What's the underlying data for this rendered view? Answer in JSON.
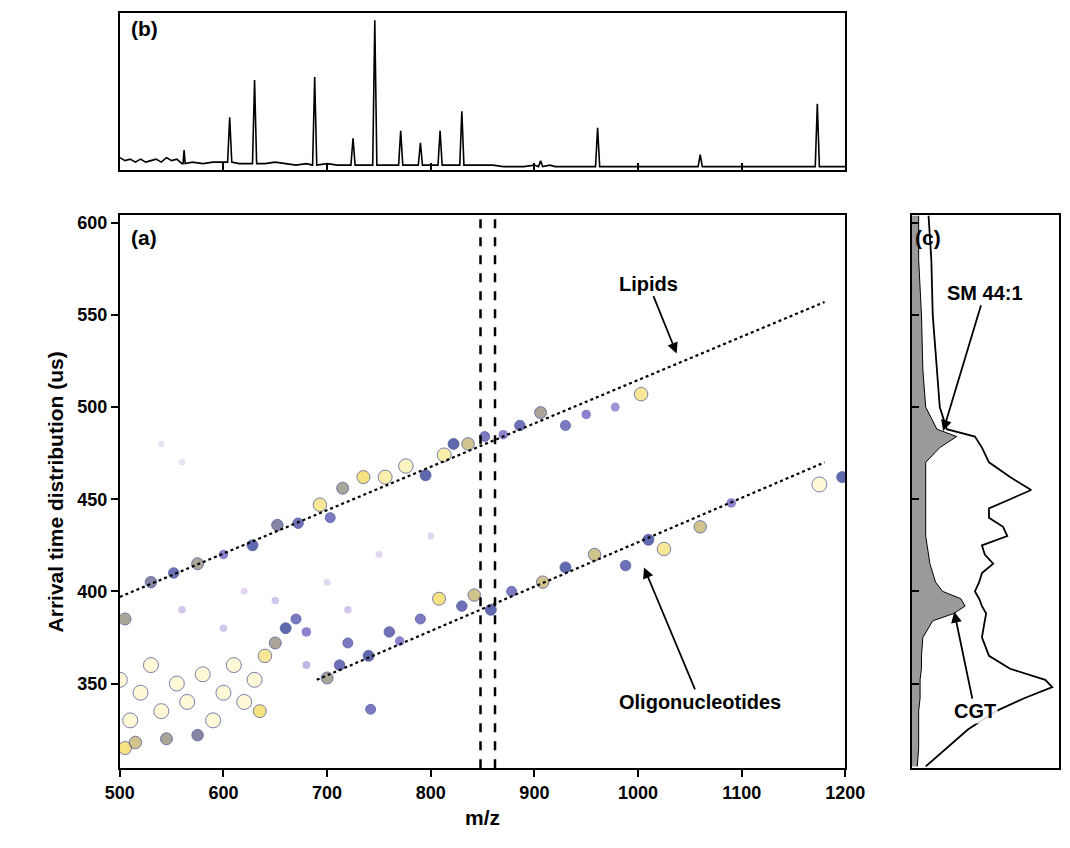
{
  "chart_data": [
    {
      "type": "line",
      "label": "(b)",
      "color": "#000000",
      "tick_labels": false,
      "xlim": [
        500,
        1200
      ],
      "ylim": [
        0,
        105
      ],
      "xticks": [
        500,
        600,
        700,
        800,
        900,
        1000,
        1100,
        1200
      ],
      "yticks": [],
      "x": [
        500,
        505,
        510,
        515,
        520,
        525,
        530,
        535,
        540,
        545,
        550,
        555,
        560,
        561,
        562,
        563,
        570,
        580,
        590,
        600,
        604,
        606,
        608,
        615,
        628,
        630,
        632,
        640,
        650,
        660,
        670,
        680,
        686,
        688,
        690,
        700,
        710,
        723,
        725,
        727,
        735,
        744,
        746,
        748,
        755,
        769,
        771,
        773,
        780,
        788,
        790,
        792,
        800,
        807,
        809,
        811,
        820,
        828,
        830,
        832,
        840,
        850,
        860,
        870,
        880,
        890,
        900,
        904,
        906,
        908,
        915,
        920,
        930,
        940,
        950,
        959,
        961,
        963,
        970,
        980,
        990,
        1000,
        1010,
        1020,
        1030,
        1040,
        1050,
        1058,
        1060,
        1062,
        1070,
        1080,
        1090,
        1100,
        1110,
        1120,
        1130,
        1140,
        1150,
        1160,
        1171,
        1173,
        1175,
        1180,
        1190,
        1200
      ],
      "values": [
        8,
        6,
        7,
        5,
        7,
        5,
        6,
        7,
        5,
        8,
        6,
        7,
        4,
        4,
        13,
        4,
        5,
        4,
        5,
        5,
        5,
        35,
        5,
        4,
        4,
        60,
        4,
        4,
        5,
        4,
        3,
        4,
        3,
        62,
        3,
        4,
        3,
        3,
        21,
        3,
        3,
        3,
        100,
        3,
        3,
        3,
        26,
        3,
        3,
        3,
        18,
        3,
        3,
        3,
        26,
        3,
        3,
        3,
        39,
        3,
        3,
        3,
        3,
        2,
        2,
        2,
        3,
        2,
        6,
        2,
        3,
        2,
        2,
        2,
        2,
        2,
        28,
        2,
        2,
        2,
        2,
        2,
        2,
        2,
        2,
        2,
        2,
        2,
        10,
        2,
        2,
        2,
        2,
        2,
        2,
        2,
        2,
        2,
        2,
        2,
        2,
        44,
        2,
        2,
        2,
        2
      ]
    },
    {
      "type": "scatter",
      "label": "(a)",
      "x_label": "m/z",
      "y_label": "Arrival time distribution (us)",
      "xlim": [
        500,
        1200
      ],
      "ylim": [
        304,
        604
      ],
      "xticks": [
        500,
        600,
        700,
        800,
        900,
        1000,
        1100,
        1200
      ],
      "yticks": [
        350,
        400,
        450,
        500,
        550,
        600
      ],
      "intensity_range": [
        0,
        100
      ],
      "x": [
        540,
        560,
        600,
        650,
        700,
        750,
        800,
        680,
        720,
        560,
        620,
        505,
        530,
        552,
        575,
        600,
        628,
        652,
        672,
        693,
        703,
        715,
        735,
        756,
        776,
        795,
        813,
        822,
        836,
        852,
        870,
        886,
        906,
        930,
        950,
        978,
        1003,
        700,
        712,
        720,
        740,
        760,
        770,
        790,
        808,
        830,
        842,
        858,
        878,
        908,
        930,
        958,
        988,
        1010,
        1025,
        1060,
        1090,
        1175,
        1197,
        742,
        505,
        515,
        545,
        575,
        640,
        650,
        660,
        670,
        680,
        635,
        510,
        520,
        530,
        540,
        555,
        565,
        580,
        590,
        600,
        610,
        620,
        630,
        500
      ],
      "y": [
        480,
        470,
        380,
        395,
        405,
        420,
        430,
        360,
        390,
        390,
        400,
        385,
        405,
        410,
        415,
        420,
        425,
        436,
        437,
        447,
        440,
        456,
        462,
        462,
        468,
        463,
        474,
        480,
        480,
        484,
        485,
        490,
        497,
        490,
        496,
        500,
        507,
        353,
        360,
        372,
        365,
        378,
        373,
        385,
        396,
        392,
        398,
        390,
        400,
        405,
        413,
        420,
        414,
        428,
        423,
        435,
        448,
        458,
        462,
        336,
        315,
        318,
        320,
        322,
        365,
        372,
        380,
        385,
        378,
        335,
        330,
        345,
        360,
        335,
        350,
        340,
        355,
        330,
        345,
        360,
        340,
        352,
        352
      ],
      "intensity": [
        15,
        15,
        25,
        25,
        20,
        20,
        20,
        30,
        25,
        25,
        20,
        70,
        65,
        55,
        70,
        45,
        60,
        65,
        55,
        85,
        50,
        70,
        80,
        90,
        95,
        60,
        90,
        60,
        75,
        50,
        45,
        55,
        70,
        50,
        45,
        40,
        85,
        70,
        55,
        50,
        60,
        55,
        45,
        50,
        80,
        55,
        75,
        60,
        50,
        75,
        60,
        75,
        55,
        60,
        85,
        75,
        45,
        100,
        60,
        50,
        80,
        75,
        70,
        65,
        85,
        70,
        60,
        50,
        45,
        80,
        100,
        100,
        100,
        100,
        100,
        100,
        100,
        100,
        100,
        100,
        100,
        100,
        100
      ],
      "fit_lines": [
        {
          "x": [
            500,
            1180
          ],
          "y": [
            397,
            557
          ],
          "line_style": "dotted"
        },
        {
          "x": [
            690,
            1180
          ],
          "y": [
            352,
            470
          ],
          "line_style": "dotted"
        }
      ],
      "cut_lines": {
        "x": [
          848,
          862
        ],
        "line_style": "dashed"
      },
      "annotations": [
        {
          "text": "Lipids",
          "x": 1010,
          "y": 567,
          "arrow_to": [
            1038,
            528
          ]
        },
        {
          "text": "Oligonucleotides",
          "x": 1060,
          "y": 340,
          "arrow_to": [
            1005,
            414
          ]
        }
      ]
    },
    {
      "type": "line",
      "label": "(c)",
      "orientation": "horizontal",
      "tick_labels": false,
      "xlim": [
        0,
        105
      ],
      "ylim": [
        304,
        604
      ],
      "xticks": [],
      "yticks": [
        350,
        400,
        450,
        500,
        550,
        600
      ],
      "y": [
        604,
        580,
        550,
        520,
        500,
        488,
        484,
        478,
        470,
        462,
        455,
        450,
        445,
        440,
        435,
        430,
        425,
        420,
        415,
        410,
        405,
        400,
        396,
        392,
        388,
        384,
        375,
        365,
        358,
        352,
        348,
        342,
        335,
        325,
        315,
        305
      ],
      "series": [
        {
          "type": "area",
          "color": "#9a9a9a",
          "values": [
            5,
            5,
            7,
            8,
            10,
            18,
            32,
            20,
            10,
            10,
            10,
            10,
            10,
            10,
            10,
            10,
            11,
            12,
            13,
            15,
            17,
            22,
            35,
            38,
            30,
            15,
            8,
            7,
            7,
            6,
            6,
            6,
            5,
            5,
            5,
            4
          ]
        },
        {
          "type": "line",
          "color": "#000000",
          "values": [
            12,
            14,
            15,
            18,
            20,
            25,
            45,
            50,
            55,
            70,
            85,
            70,
            55,
            55,
            65,
            68,
            50,
            52,
            58,
            50,
            48,
            45,
            48,
            50,
            53,
            52,
            50,
            55,
            70,
            95,
            100,
            80,
            60,
            40,
            25,
            10
          ]
        }
      ],
      "annotations": [
        {
          "text": "SM 44:1",
          "x": 52,
          "y": 562,
          "arrow_to": [
            22,
            486
          ]
        },
        {
          "text": "CGT",
          "x": 45,
          "y": 335,
          "arrow_to": [
            30,
            390
          ]
        }
      ]
    }
  ]
}
